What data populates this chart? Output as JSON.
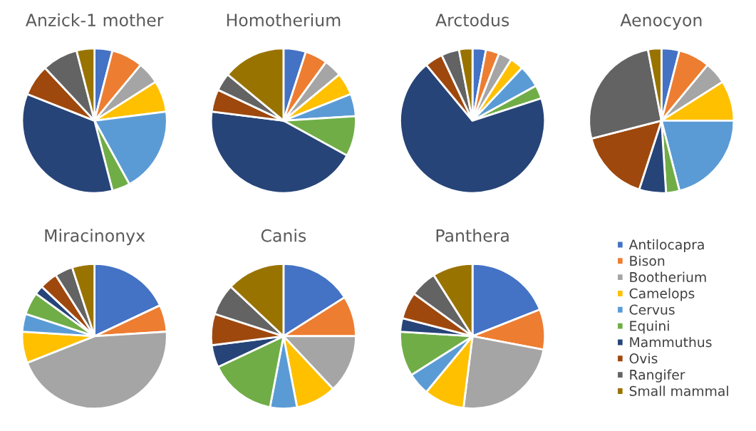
{
  "chart_data": [
    {
      "type": "pie",
      "title": "Anzick-1 mother",
      "legend": "right",
      "categories": [
        "Antilocapra",
        "Bison",
        "Bootherium",
        "Camelops",
        "Cervus",
        "Equini",
        "Mammuthus",
        "Ovis",
        "Rangifer",
        "Small mammal"
      ],
      "values": [
        4,
        7,
        5,
        7,
        19,
        4,
        35,
        7,
        8,
        4
      ],
      "colors": [
        "#4472c4",
        "#ed7d31",
        "#a5a5a5",
        "#ffc000",
        "#5b9bd5",
        "#70ad47",
        "#264478",
        "#9e480e",
        "#636363",
        "#997300"
      ]
    },
    {
      "type": "pie",
      "title": "Homotherium",
      "categories": [
        null,
        null,
        null,
        null,
        null,
        null,
        null,
        null,
        null,
        null
      ],
      "values": [
        5,
        5,
        4,
        5,
        5,
        9,
        44,
        5,
        4,
        14
      ],
      "colors": [
        "#4472c4",
        "#ed7d31",
        "#a5a5a5",
        "#ffc000",
        "#5b9bd5",
        "#70ad47",
        "#264478",
        "#9e480e",
        "#636363",
        "#997300"
      ]
    },
    {
      "type": "pie",
      "title": "Arctodus",
      "categories": [
        null,
        null,
        null,
        null,
        null,
        null,
        null,
        null,
        null,
        null
      ],
      "values": [
        3,
        3,
        3,
        3,
        5,
        3,
        69,
        4,
        4,
        3
      ],
      "colors": [
        "#4472c4",
        "#ed7d31",
        "#a5a5a5",
        "#ffc000",
        "#5b9bd5",
        "#70ad47",
        "#264478",
        "#9e480e",
        "#636363",
        "#997300"
      ]
    },
    {
      "type": "pie",
      "title": "Aenocyon",
      "categories": [
        null,
        null,
        null,
        null,
        null,
        null,
        null,
        null,
        null,
        null
      ],
      "values": [
        4,
        7,
        5,
        9,
        21,
        3,
        6,
        16,
        26,
        3
      ],
      "colors": [
        "#4472c4",
        "#ed7d31",
        "#a5a5a5",
        "#ffc000",
        "#5b9bd5",
        "#70ad47",
        "#264478",
        "#9e480e",
        "#636363",
        "#997300"
      ]
    },
    {
      "type": "pie",
      "title": "Miracinonyx",
      "categories": [
        null,
        null,
        null,
        null,
        null,
        null,
        null,
        null,
        null,
        null
      ],
      "values": [
        18,
        6,
        45,
        7,
        4,
        5,
        2,
        4,
        4,
        5
      ],
      "colors": [
        "#4472c4",
        "#ed7d31",
        "#a5a5a5",
        "#ffc000",
        "#5b9bd5",
        "#70ad47",
        "#264478",
        "#9e480e",
        "#636363",
        "#997300"
      ]
    },
    {
      "type": "pie",
      "title": "Canis",
      "categories": [
        null,
        null,
        null,
        null,
        null,
        null,
        null,
        null,
        null,
        null
      ],
      "values": [
        16,
        9,
        13,
        9,
        6,
        15,
        5,
        7,
        7,
        13
      ],
      "colors": [
        "#4472c4",
        "#ed7d31",
        "#a5a5a5",
        "#ffc000",
        "#5b9bd5",
        "#70ad47",
        "#264478",
        "#9e480e",
        "#636363",
        "#997300"
      ]
    },
    {
      "type": "pie",
      "title": "Panthera",
      "categories": [
        null,
        null,
        null,
        null,
        null,
        null,
        null,
        null,
        null,
        null
      ],
      "values": [
        19,
        9,
        24,
        9,
        5,
        10,
        3,
        6,
        6,
        9
      ],
      "colors": [
        "#4472c4",
        "#ed7d31",
        "#a5a5a5",
        "#ffc000",
        "#5b9bd5",
        "#70ad47",
        "#264478",
        "#9e480e",
        "#636363",
        "#997300"
      ]
    }
  ]
}
